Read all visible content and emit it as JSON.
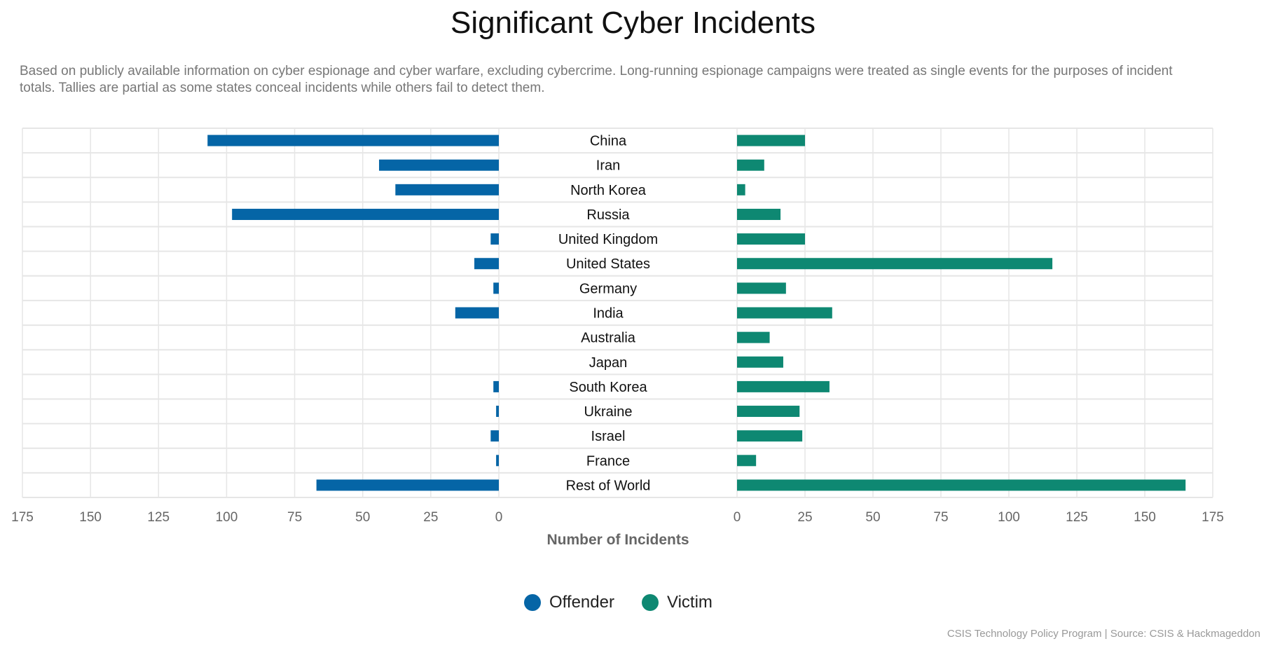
{
  "chart_data": {
    "type": "bar",
    "title": "Significant Cyber Incidents",
    "subtitle": "Based on publicly available information on cyber espionage and cyber warfare, excluding cybercrime. Long-running espionage campaigns were treated as single events for the purposes of incident totals. Tallies are partial as some states conceal incidents while others fail to detect them.",
    "xlabel": "Number of Incidents",
    "categories": [
      "China",
      "Iran",
      "North Korea",
      "Russia",
      "United Kingdom",
      "United States",
      "Germany",
      "India",
      "Australia",
      "Japan",
      "South Korea",
      "Ukraine",
      "Israel",
      "France",
      "Rest of World"
    ],
    "series": [
      {
        "name": "Offender",
        "color": "#0565a6",
        "values": [
          107,
          44,
          38,
          98,
          3,
          9,
          2,
          16,
          0,
          0,
          2,
          1,
          3,
          1,
          67
        ]
      },
      {
        "name": "Victim",
        "color": "#0e8872",
        "values": [
          25,
          10,
          3,
          16,
          25,
          116,
          18,
          35,
          12,
          17,
          34,
          23,
          24,
          7,
          165
        ]
      }
    ],
    "xlim": [
      0,
      175
    ],
    "ticks": [
      "0",
      "25",
      "50",
      "75",
      "100",
      "125",
      "150",
      "175"
    ],
    "grid": true,
    "legend_position": "bottom-center",
    "source": "CSIS Technology Policy Program | Source: CSIS & Hackmageddon"
  }
}
